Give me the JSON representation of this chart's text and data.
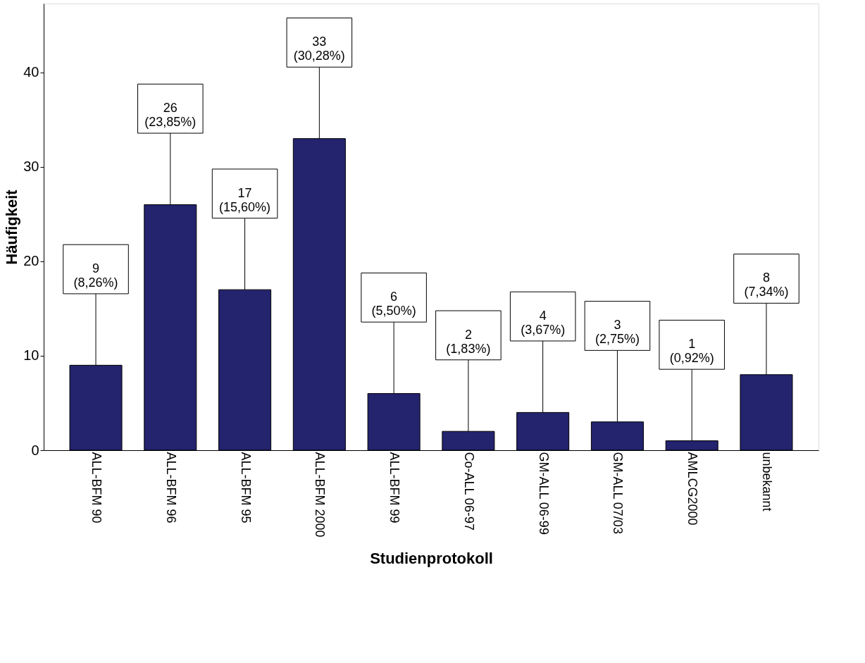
{
  "chart_data": {
    "type": "bar",
    "xlabel": "Studienprotokoll",
    "ylabel": "Häufigkeit",
    "categories": [
      "ALL-BFM 90",
      "ALL-BFM 96",
      "ALL-BFM 95",
      "ALL-BFM 2000",
      "ALL-BFM 99",
      "Co-ALL 06-97",
      "GM-ALL 06-99",
      "GM-ALL 07/03",
      "AMLCG2000",
      "unbekannt"
    ],
    "values": [
      9,
      26,
      17,
      33,
      6,
      2,
      4,
      3,
      1,
      8
    ],
    "value_labels": [
      "9\n(8,26%)",
      "26\n(23,85%)",
      "17\n(15,60%)",
      "33\n(30,28%)",
      "6\n(5,50%)",
      "2\n(1,83%)",
      "4\n(3,67%)",
      "3\n(2,75%)",
      "1\n(0,92%)",
      "8\n(7,34%)"
    ],
    "color": "#23236e",
    "ylim": [
      0,
      47.3
    ],
    "yticks": [
      0,
      10,
      20,
      30,
      40
    ],
    "grid": false
  }
}
